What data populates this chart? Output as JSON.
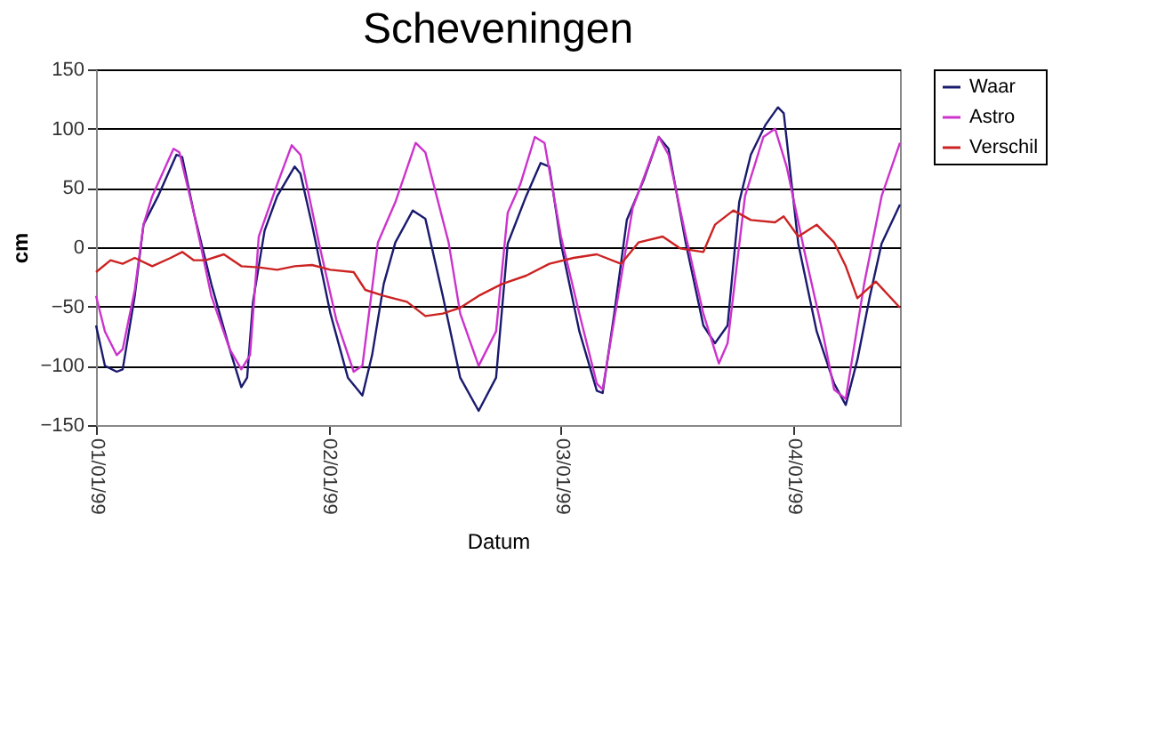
{
  "chart_data": {
    "type": "line",
    "title": "Scheveningen",
    "xlabel": "Datum",
    "ylabel": "cm",
    "xlim": [
      "1999-01-01T00:00",
      "1999-01-04T11:00"
    ],
    "xticks": [
      {
        "value": "1999-01-01",
        "label": "01/01/99"
      },
      {
        "value": "1999-01-02",
        "label": "02/01/99"
      },
      {
        "value": "1999-01-03",
        "label": "03/01/99"
      },
      {
        "value": "1999-01-04",
        "label": "04/01/99"
      }
    ],
    "ylim": [
      -150,
      150
    ],
    "yticks": [
      -150,
      -100,
      -50,
      0,
      50,
      100,
      150
    ],
    "grid": "y",
    "legend": "right",
    "marker": "none",
    "line_style": "solid",
    "series": [
      {
        "name": "Waar",
        "color": "#1a1a6e",
        "x": [
          "1999-01-01T00:00",
          "1999-01-01T00:55",
          "1999-01-01T02:08",
          "1999-01-01T02:45",
          "1999-01-01T04:00",
          "1999-01-01T04:54",
          "1999-01-01T06:24",
          "1999-01-01T08:18",
          "1999-01-01T08:54",
          "1999-01-01T10:06",
          "1999-01-01T11:54",
          "1999-01-01T13:48",
          "1999-01-01T15:00",
          "1999-01-01T15:36",
          "1999-01-01T16:12",
          "1999-01-01T17:24",
          "1999-01-01T18:42",
          "1999-01-01T20:30",
          "1999-01-01T21:06",
          "1999-01-01T22:18",
          "1999-01-02T00:12",
          "1999-01-02T02:00",
          "1999-01-02T03:30",
          "1999-01-02T04:30",
          "1999-01-02T05:42",
          "1999-01-02T06:54",
          "1999-01-02T08:42",
          "1999-01-02T10:00",
          "1999-01-02T11:48",
          "1999-01-02T13:36",
          "1999-01-02T15:30",
          "1999-01-02T17:18",
          "1999-01-02T18:30",
          "1999-01-02T20:24",
          "1999-01-02T21:54",
          "1999-01-02T22:48",
          "1999-01-03T00:00",
          "1999-01-03T01:54",
          "1999-01-03T03:42",
          "1999-01-03T04:18",
          "1999-01-03T05:30",
          "1999-01-03T06:48",
          "1999-01-03T08:36",
          "1999-01-03T10:06",
          "1999-01-03T11:06",
          "1999-01-03T12:54",
          "1999-01-03T14:42",
          "1999-01-03T15:54",
          "1999-01-03T17:12",
          "1999-01-03T18:24",
          "1999-01-03T19:36",
          "1999-01-03T21:06",
          "1999-01-03T22:24",
          "1999-01-03T23:00",
          "1999-01-04T00:30",
          "1999-01-04T02:24",
          "1999-01-04T04:12",
          "1999-01-04T05:24",
          "1999-01-04T06:36",
          "1999-01-04T07:54",
          "1999-01-04T09:06",
          "1999-01-04T11:00"
        ],
        "values": [
          -66,
          -100,
          -105,
          -103,
          -41,
          19,
          43,
          78,
          76,
          29,
          -31,
          -86,
          -118,
          -110,
          -46,
          14,
          43,
          68,
          62,
          19,
          -56,
          -110,
          -125,
          -91,
          -31,
          4,
          31,
          24,
          -41,
          -110,
          -138,
          -110,
          3,
          43,
          71,
          68,
          3,
          -71,
          -121,
          -123,
          -56,
          23,
          58,
          93,
          83,
          3,
          -66,
          -81,
          -66,
          38,
          78,
          103,
          118,
          113,
          3,
          -71,
          -115,
          -133,
          -95,
          -41,
          3,
          36
        ]
      },
      {
        "name": "Astro",
        "color": "#cc33cc",
        "x": [
          "1999-01-01T00:00",
          "1999-01-01T00:55",
          "1999-01-01T02:08",
          "1999-01-01T02:45",
          "1999-01-01T04:00",
          "1999-01-01T04:54",
          "1999-01-01T05:48",
          "1999-01-01T08:00",
          "1999-01-01T08:36",
          "1999-01-01T10:06",
          "1999-01-01T11:54",
          "1999-01-01T13:48",
          "1999-01-01T15:00",
          "1999-01-01T15:54",
          "1999-01-01T16:48",
          "1999-01-01T18:42",
          "1999-01-01T20:12",
          "1999-01-01T21:06",
          "1999-01-01T23:00",
          "1999-01-02T00:48",
          "1999-01-02T02:36",
          "1999-01-02T03:30",
          "1999-01-02T05:06",
          "1999-01-02T06:54",
          "1999-01-02T09:00",
          "1999-01-02T10:00",
          "1999-01-02T12:24",
          "1999-01-02T13:36",
          "1999-01-02T15:30",
          "1999-01-02T17:18",
          "1999-01-02T18:30",
          "1999-01-02T19:48",
          "1999-01-02T21:18",
          "1999-01-02T22:18",
          "1999-01-03T00:00",
          "1999-01-03T01:54",
          "1999-01-03T03:42",
          "1999-01-03T04:18",
          "1999-01-03T05:30",
          "1999-01-03T07:24",
          "1999-01-03T10:06",
          "1999-01-03T11:06",
          "1999-01-03T12:54",
          "1999-01-03T14:42",
          "1999-01-03T16:18",
          "1999-01-03T17:12",
          "1999-01-03T19:00",
          "1999-01-03T20:54",
          "1999-01-03T22:06",
          "1999-01-03T23:18",
          "1999-01-04T01:12",
          "1999-01-04T03:00",
          "1999-01-04T04:12",
          "1999-01-04T05:24",
          "1999-01-04T07:18",
          "1999-01-04T09:06",
          "1999-01-04T11:00"
        ],
        "values": [
          -41,
          -71,
          -91,
          -86,
          -36,
          19,
          43,
          83,
          80,
          29,
          -41,
          -86,
          -103,
          -91,
          9,
          53,
          86,
          78,
          4,
          -61,
          -105,
          -100,
          4,
          38,
          88,
          80,
          4,
          -56,
          -100,
          -71,
          29,
          53,
          93,
          88,
          9,
          -56,
          -115,
          -120,
          -61,
          33,
          93,
          78,
          9,
          -56,
          -98,
          -81,
          43,
          93,
          100,
          68,
          -6,
          -71,
          -120,
          -128,
          -31,
          43,
          88
        ]
      },
      {
        "name": "Verschil",
        "color": "#cc2222",
        "x": [
          "1999-01-01T00:00",
          "1999-01-01T01:30",
          "1999-01-01T02:45",
          "1999-01-01T04:00",
          "1999-01-01T05:48",
          "1999-01-01T07:42",
          "1999-01-01T08:54",
          "1999-01-01T10:06",
          "1999-01-01T11:18",
          "1999-01-01T13:12",
          "1999-01-01T15:00",
          "1999-01-01T16:48",
          "1999-01-01T18:42",
          "1999-01-01T20:30",
          "1999-01-01T22:18",
          "1999-01-02T00:12",
          "1999-01-02T02:36",
          "1999-01-02T03:48",
          "1999-01-02T05:42",
          "1999-01-02T08:06",
          "1999-01-02T10:00",
          "1999-01-02T11:48",
          "1999-01-02T13:36",
          "1999-01-02T15:30",
          "1999-01-02T17:54",
          "1999-01-02T20:24",
          "1999-01-02T22:48",
          "1999-01-03T01:18",
          "1999-01-03T03:42",
          "1999-01-03T06:12",
          "1999-01-03T08:00",
          "1999-01-03T10:30",
          "1999-01-03T12:18",
          "1999-01-03T14:42",
          "1999-01-03T15:54",
          "1999-01-03T17:48",
          "1999-01-03T19:36",
          "1999-01-03T22:06",
          "1999-01-03T23:00",
          "1999-01-04T00:30",
          "1999-01-04T02:24",
          "1999-01-04T04:12",
          "1999-01-04T05:24",
          "1999-01-04T06:36",
          "1999-01-04T08:30",
          "1999-01-04T11:00"
        ],
        "values": [
          -21,
          -11,
          -14,
          -9,
          -16,
          -9,
          -4,
          -11,
          -11,
          -6,
          -16,
          -17,
          -19,
          -16,
          -15,
          -19,
          -21,
          -36,
          -41,
          -46,
          -58,
          -56,
          -51,
          -41,
          -31,
          -24,
          -14,
          -9,
          -6,
          -14,
          4,
          9,
          -1,
          -4,
          19,
          31,
          23,
          21,
          26,
          9,
          19,
          4,
          -16,
          -43,
          -29,
          -51
        ]
      }
    ]
  }
}
